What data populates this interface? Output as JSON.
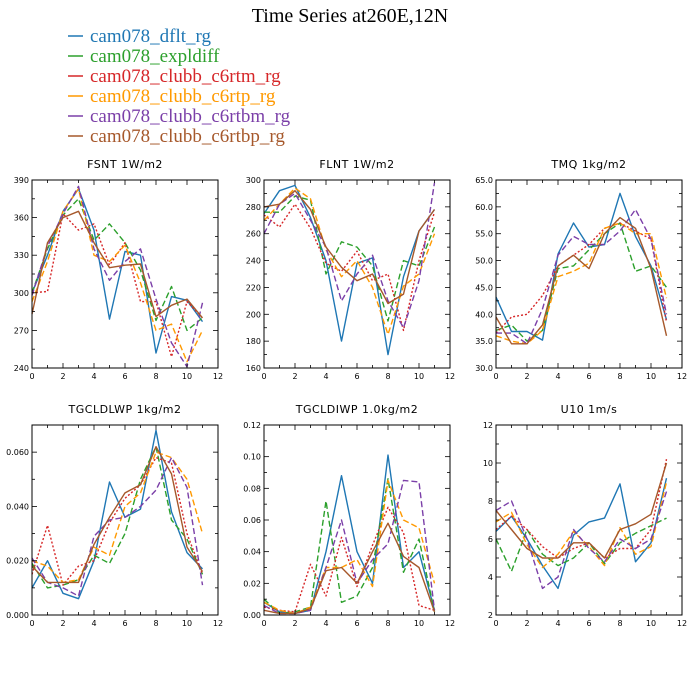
{
  "figure_title": "Time Series at260E,12N",
  "legend": [
    {
      "name": "cam078_dflt_rg",
      "color": "#1f77b4",
      "dash": "solid"
    },
    {
      "name": "cam078_expldiff",
      "color": "#2ca02c",
      "dash": "dashed"
    },
    {
      "name": "cam078_clubb_c6rtm_rg",
      "color": "#d62728",
      "dash": "dotted"
    },
    {
      "name": "cam078_clubb_c6rtp_rg",
      "color": "#ff9900",
      "dash": "dashed"
    },
    {
      "name": "cam078_clubb_c6rtbm_rg",
      "color": "#7b3fa8",
      "dash": "dashed"
    },
    {
      "name": "cam078_clubb_c6rtbp_rg",
      "color": "#a6582b",
      "dash": "solid"
    }
  ],
  "chart_data": [
    {
      "type": "line",
      "title": "FSNT 1W/m2",
      "xlim": [
        0,
        12
      ],
      "ylim": [
        240,
        390
      ],
      "xticks": [
        "0",
        "2",
        "4",
        "6",
        "8",
        "10",
        "12"
      ],
      "yticks": [
        "240",
        "270",
        "300",
        "330",
        "360",
        "390"
      ],
      "x": [
        0,
        1,
        2,
        3,
        4,
        5,
        6,
        7,
        8,
        9,
        10,
        11
      ],
      "series": [
        {
          "name": "cam078_dflt_rg",
          "values": [
            300,
            330,
            365,
            383,
            350,
            279,
            333,
            330,
            252,
            297,
            294,
            277
          ]
        },
        {
          "name": "cam078_expldiff",
          "values": [
            300,
            335,
            362,
            375,
            342,
            355,
            340,
            318,
            278,
            305,
            270,
            280
          ]
        },
        {
          "name": "cam078_clubb_c6rtm_rg",
          "values": [
            300,
            301,
            363,
            350,
            355,
            322,
            340,
            293,
            293,
            249,
            293,
            280
          ]
        },
        {
          "name": "cam078_clubb_c6rtp_rg",
          "values": [
            293,
            325,
            365,
            383,
            330,
            325,
            338,
            308,
            270,
            275,
            245,
            270
          ]
        },
        {
          "name": "cam078_clubb_c6rtbm_rg",
          "values": [
            298,
            337,
            363,
            385,
            335,
            310,
            325,
            335,
            295,
            260,
            241,
            292
          ]
        },
        {
          "name": "cam078_clubb_c6rtbp_rg",
          "values": [
            283,
            340,
            360,
            365,
            340,
            320,
            322,
            323,
            281,
            290,
            295,
            280
          ]
        }
      ]
    },
    {
      "type": "line",
      "title": "FLNT 1W/m2",
      "xlim": [
        0,
        12
      ],
      "ylim": [
        160,
        300
      ],
      "xticks": [
        "0",
        "2",
        "4",
        "6",
        "8",
        "10",
        "12"
      ],
      "yticks": [
        "160",
        "180",
        "200",
        "220",
        "240",
        "260",
        "280",
        "300"
      ],
      "x": [
        0,
        1,
        2,
        3,
        4,
        5,
        6,
        7,
        8,
        9,
        10,
        11
      ],
      "series": [
        {
          "name": "cam078_dflt_rg",
          "values": [
            275,
            292,
            296,
            272,
            240,
            180,
            238,
            242,
            170,
            228,
            262,
            278
          ]
        },
        {
          "name": "cam078_expldiff",
          "values": [
            276,
            276,
            288,
            285,
            230,
            254,
            250,
            236,
            195,
            240,
            236,
            265
          ]
        },
        {
          "name": "cam078_clubb_c6rtm_rg",
          "values": [
            274,
            265,
            282,
            264,
            238,
            232,
            247,
            225,
            230,
            188,
            240,
            276
          ]
        },
        {
          "name": "cam078_clubb_c6rtp_rg",
          "values": [
            270,
            282,
            294,
            286,
            248,
            228,
            240,
            220,
            185,
            221,
            230,
            260
          ]
        },
        {
          "name": "cam078_clubb_c6rtbm_rg",
          "values": [
            260,
            282,
            290,
            270,
            250,
            210,
            230,
            244,
            210,
            190,
            225,
            298
          ]
        },
        {
          "name": "cam078_clubb_c6rtbp_rg",
          "values": [
            280,
            282,
            292,
            278,
            250,
            235,
            225,
            230,
            208,
            215,
            262,
            278
          ]
        }
      ]
    },
    {
      "type": "line",
      "title": "TMQ 1kg/m2",
      "xlim": [
        0,
        12
      ],
      "ylim": [
        30,
        65
      ],
      "xticks": [
        "0",
        "2",
        "4",
        "6",
        "8",
        "10",
        "12"
      ],
      "yticks": [
        "30.0",
        "35.0",
        "40.0",
        "45.0",
        "50.0",
        "55.0",
        "60.0",
        "65.0"
      ],
      "x": [
        0,
        1,
        2,
        3,
        4,
        5,
        6,
        7,
        8,
        9,
        10,
        11
      ],
      "series": [
        {
          "name": "cam078_dflt_rg",
          "values": [
            43.2,
            36.8,
            36.8,
            35.2,
            51.2,
            57,
            52.5,
            53,
            62.5,
            54.5,
            49,
            39
          ]
        },
        {
          "name": "cam078_expldiff",
          "values": [
            37,
            38,
            35,
            37,
            48.5,
            49,
            52,
            55,
            57,
            48,
            49,
            45
          ]
        },
        {
          "name": "cam078_clubb_c6rtm_rg",
          "values": [
            36.5,
            39.5,
            40,
            43.5,
            49,
            51,
            53,
            56,
            57,
            55.5,
            54,
            38.5
          ]
        },
        {
          "name": "cam078_clubb_c6rtp_rg",
          "values": [
            36,
            35,
            34.5,
            37,
            47,
            48,
            49.5,
            56,
            57,
            55,
            55,
            43
          ]
        },
        {
          "name": "cam078_clubb_c6rtbm_rg",
          "values": [
            36.5,
            36.5,
            34.5,
            41,
            51,
            54.5,
            53,
            53,
            55.5,
            59.5,
            54,
            40
          ]
        },
        {
          "name": "cam078_clubb_c6rtbp_rg",
          "values": [
            39.5,
            34.5,
            34.5,
            38,
            49,
            51,
            48.5,
            55,
            58,
            56,
            48.5,
            36
          ]
        }
      ]
    },
    {
      "type": "line",
      "title": "TGCLDLWP 1kg/m2",
      "xlim": [
        0,
        12
      ],
      "ylim": [
        0,
        0.07
      ],
      "xticks": [
        "0",
        "2",
        "4",
        "6",
        "8",
        "10",
        "12"
      ],
      "yticks": [
        "0.000",
        "0.020",
        "0.040",
        "0.060"
      ],
      "x": [
        0,
        1,
        2,
        3,
        4,
        5,
        6,
        7,
        8,
        9,
        10,
        11
      ],
      "series": [
        {
          "name": "cam078_dflt_rg",
          "values": [
            0.01,
            0.02,
            0.008,
            0.006,
            0.02,
            0.049,
            0.036,
            0.039,
            0.068,
            0.038,
            0.023,
            0.017
          ]
        },
        {
          "name": "cam078_expldiff",
          "values": [
            0.019,
            0.01,
            0.011,
            0.013,
            0.022,
            0.019,
            0.03,
            0.05,
            0.062,
            0.035,
            0.028,
            0.015
          ]
        },
        {
          "name": "cam078_clubb_c6rtm_rg",
          "values": [
            0.015,
            0.033,
            0.011,
            0.018,
            0.02,
            0.034,
            0.043,
            0.048,
            0.058,
            0.056,
            0.03,
            0.015
          ]
        },
        {
          "name": "cam078_clubb_c6rtp_rg",
          "values": [
            0.02,
            0.018,
            0.012,
            0.013,
            0.025,
            0.022,
            0.04,
            0.045,
            0.06,
            0.058,
            0.05,
            0.03
          ]
        },
        {
          "name": "cam078_clubb_c6rtbm_rg",
          "values": [
            0.021,
            0.012,
            0.01,
            0.007,
            0.029,
            0.035,
            0.036,
            0.04,
            0.046,
            0.058,
            0.047,
            0.011
          ]
        },
        {
          "name": "cam078_clubb_c6rtbp_rg",
          "values": [
            0.018,
            0.012,
            0.012,
            0.012,
            0.026,
            0.036,
            0.045,
            0.048,
            0.062,
            0.052,
            0.025,
            0.016
          ]
        }
      ]
    },
    {
      "type": "line",
      "title": "TGCLDIWP 1.0kg/m2",
      "xlim": [
        0,
        12
      ],
      "ylim": [
        0,
        0.12
      ],
      "xticks": [
        "0",
        "2",
        "4",
        "6",
        "8",
        "10",
        "12"
      ],
      "yticks": [
        "0.00",
        "0.02",
        "0.04",
        "0.06",
        "0.08",
        "0.10",
        "0.12"
      ],
      "x": [
        0,
        1,
        2,
        3,
        4,
        5,
        6,
        7,
        8,
        9,
        10,
        11
      ],
      "series": [
        {
          "name": "cam078_dflt_rg",
          "values": [
            0.008,
            0.002,
            0.001,
            0.003,
            0.04,
            0.088,
            0.04,
            0.02,
            0.101,
            0.03,
            0.04,
            0.003
          ]
        },
        {
          "name": "cam078_expldiff",
          "values": [
            0.01,
            0.001,
            0.002,
            0.005,
            0.072,
            0.008,
            0.012,
            0.03,
            0.086,
            0.027,
            0.048,
            0.002
          ]
        },
        {
          "name": "cam078_clubb_c6rtm_rg",
          "values": [
            0.005,
            0.003,
            0.002,
            0.032,
            0.012,
            0.049,
            0.018,
            0.044,
            0.068,
            0.052,
            0.006,
            0.003
          ]
        },
        {
          "name": "cam078_clubb_c6rtp_rg",
          "values": [
            0.008,
            0.003,
            0.001,
            0.005,
            0.03,
            0.03,
            0.035,
            0.018,
            0.085,
            0.06,
            0.055,
            0.02
          ]
        },
        {
          "name": "cam078_clubb_c6rtbm_rg",
          "values": [
            0.006,
            0.001,
            0.001,
            0.003,
            0.03,
            0.06,
            0.02,
            0.035,
            0.045,
            0.085,
            0.084,
            0.003
          ]
        },
        {
          "name": "cam078_clubb_c6rtbp_rg",
          "values": [
            0.003,
            0.001,
            0.001,
            0.004,
            0.028,
            0.03,
            0.02,
            0.04,
            0.058,
            0.037,
            0.03,
            0.002
          ]
        }
      ]
    },
    {
      "type": "line",
      "title": "U10 1m/s",
      "xlim": [
        0,
        12
      ],
      "ylim": [
        2,
        12
      ],
      "xticks": [
        "0",
        "2",
        "4",
        "6",
        "8",
        "10",
        "12"
      ],
      "yticks": [
        "2",
        "4",
        "6",
        "8",
        "10",
        "12"
      ],
      "x": [
        0,
        1,
        2,
        3,
        4,
        5,
        6,
        7,
        8,
        9,
        10,
        11
      ],
      "series": [
        {
          "name": "cam078_dflt_rg",
          "values": [
            6.4,
            7.2,
            6.0,
            4.6,
            3.4,
            6.2,
            6.9,
            7.1,
            8.9,
            4.8,
            5.8,
            9.2
          ]
        },
        {
          "name": "cam078_expldiff",
          "values": [
            6.0,
            4.3,
            6.5,
            5.2,
            4.6,
            5.0,
            5.8,
            4.7,
            5.8,
            6.3,
            6.7,
            7.1
          ]
        },
        {
          "name": "cam078_clubb_c6rtm_rg",
          "values": [
            6.5,
            7.2,
            6.5,
            5.6,
            5.0,
            5.5,
            5.8,
            5.0,
            5.5,
            5.5,
            6.5,
            10.2
          ]
        },
        {
          "name": "cam078_clubb_c6rtp_rg",
          "values": [
            6.9,
            7.4,
            5.7,
            4.5,
            5.2,
            6.4,
            5.6,
            4.6,
            6.6,
            5.2,
            5.6,
            9.0
          ]
        },
        {
          "name": "cam078_clubb_c6rtbm_rg",
          "values": [
            7.5,
            8.0,
            6.0,
            3.4,
            4.0,
            6.5,
            5.5,
            4.8,
            6.0,
            5.5,
            6.0,
            8.5
          ]
        },
        {
          "name": "cam078_clubb_c6rtbp_rg",
          "values": [
            7.5,
            6.5,
            5.5,
            5.0,
            5.0,
            5.8,
            5.8,
            5.0,
            6.5,
            6.8,
            7.3,
            10.0
          ]
        }
      ]
    }
  ]
}
